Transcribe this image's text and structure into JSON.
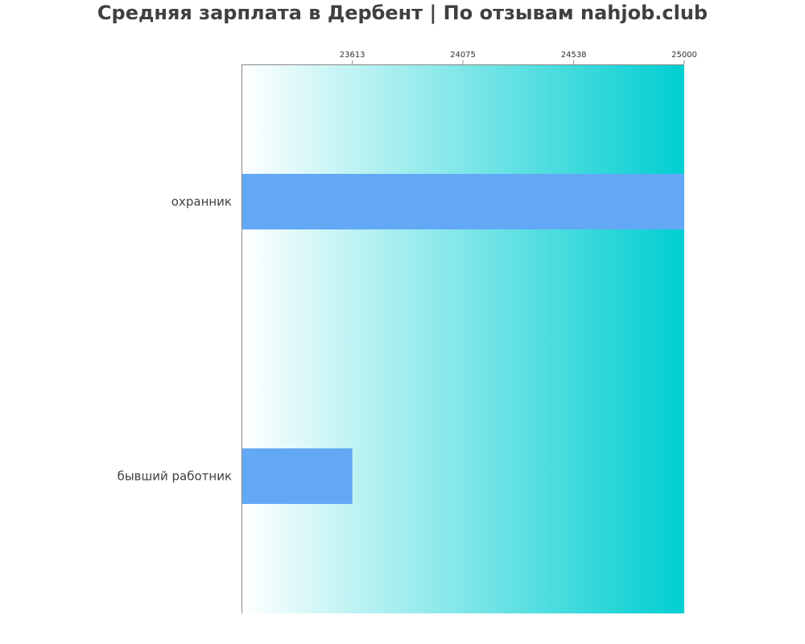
{
  "chart_data": {
    "type": "bar",
    "orientation": "horizontal",
    "title": "Средняя зарплата в Дербент | По отзывам nahjob.club",
    "categories": [
      "охранник",
      "бывший работник"
    ],
    "values": [
      25000,
      23613
    ],
    "xlim": [
      23150,
      25000
    ],
    "xticks": [
      23613,
      24075,
      24538,
      25000
    ],
    "x_axis_position": "top",
    "xlabel": "",
    "ylabel": "",
    "grid": false,
    "colors": {
      "bar": "#63a8f5",
      "background_gradient_start": "#ffffff",
      "background_gradient_end": "#00ced1",
      "axis": "#888888",
      "text": "#404040"
    }
  }
}
